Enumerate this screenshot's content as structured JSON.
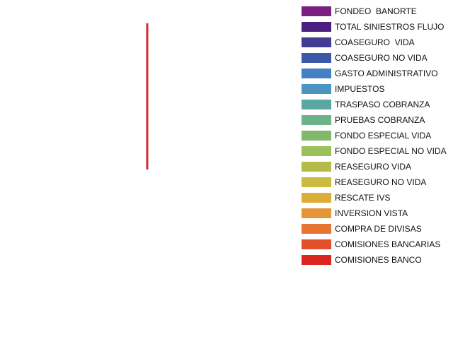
{
  "chart_data": {
    "type": "bar",
    "series": [
      {
        "name": "FONDEO  BANORTE",
        "color": "#7b1f82"
      },
      {
        "name": "TOTAL SINIESTROS FLUJO",
        "color": "#4b1e80"
      },
      {
        "name": "COASEGURO  VIDA",
        "color": "#423d92"
      },
      {
        "name": "COASEGURO NO VIDA",
        "color": "#3a5aa8"
      },
      {
        "name": "GASTO ADMINISTRATIVO",
        "color": "#4480c4"
      },
      {
        "name": "IMPUESTOS",
        "color": "#4c95c2"
      },
      {
        "name": "TRASPASO COBRANZA",
        "color": "#59a6a3"
      },
      {
        "name": "PRUEBAS COBRANZA",
        "color": "#6cb38a"
      },
      {
        "name": "FONDO ESPECIAL VIDA",
        "color": "#80b96c"
      },
      {
        "name": "FONDO ESPECIAL NO VIDA",
        "color": "#9cc15a"
      },
      {
        "name": "REASEGURO VIDA",
        "color": "#b4bb48"
      },
      {
        "name": "REASEGURO NO VIDA",
        "color": "#cdbb3f"
      },
      {
        "name": "RESCATE IVS",
        "color": "#dcad38"
      },
      {
        "name": "INVERSION VISTA",
        "color": "#e4953a"
      },
      {
        "name": "COMPRA DE DIVISAS",
        "color": "#e87432"
      },
      {
        "name": "COMISIONES BANCARIAS",
        "color": "#e24f2b"
      },
      {
        "name": "COMISIONES BANCO",
        "color": "#dc2420"
      }
    ]
  }
}
